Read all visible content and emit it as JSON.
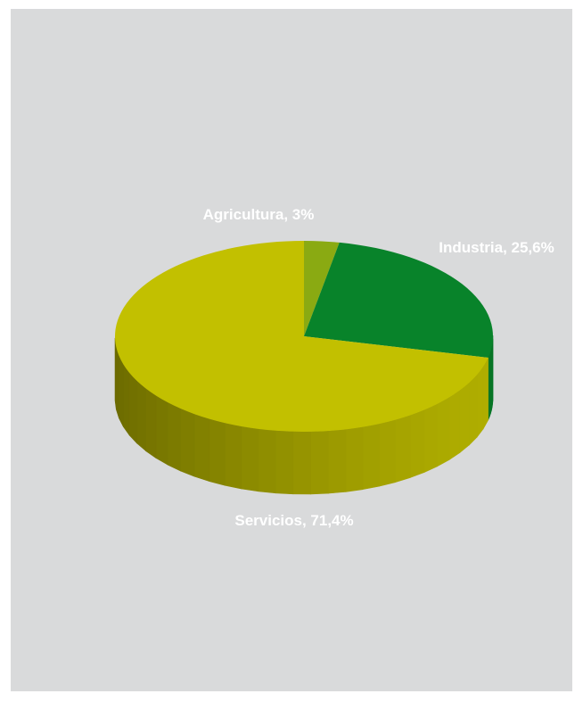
{
  "chart_data": {
    "type": "pie",
    "style": "3d",
    "title": "",
    "slices": [
      {
        "label": "Agricultura, 3%",
        "name": "Agricultura",
        "value": 3.0,
        "color": "#8aaa12"
      },
      {
        "label": "Industria, 25,6%",
        "name": "Industria",
        "value": 25.6,
        "color": "#08832a"
      },
      {
        "label": "Servicios, 71,4%",
        "name": "Servicios",
        "value": 71.4,
        "color": "#c2c000"
      }
    ],
    "background_color": "#d9dadb"
  }
}
